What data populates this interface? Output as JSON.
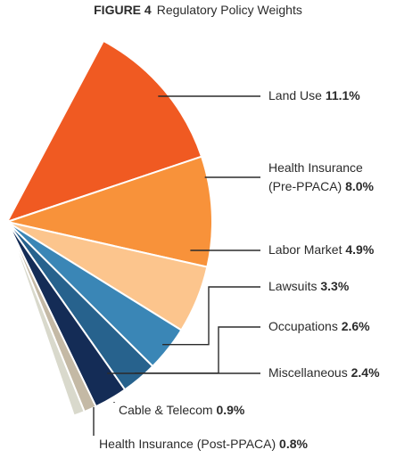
{
  "figure": {
    "number": "FIGURE 4",
    "title": "Regulatory Policy Weights"
  },
  "chart_data": {
    "type": "pie",
    "title": "Regulatory Policy Weights",
    "unit": "%",
    "slices": [
      {
        "label": "Land Use",
        "value": 11.1,
        "value_label": "11.1%",
        "color": "#f05a22"
      },
      {
        "label": "Health Insurance (Pre-PPACA)",
        "label_lines": [
          "Health Insurance",
          "(Pre-PPACA)"
        ],
        "value": 8.0,
        "value_label": "8.0%",
        "color": "#f8923a"
      },
      {
        "label": "Labor Market",
        "value": 4.9,
        "value_label": "4.9%",
        "color": "#fcc58d"
      },
      {
        "label": "Lawsuits",
        "value": 3.3,
        "value_label": "3.3%",
        "color": "#3a86b6"
      },
      {
        "label": "Occupations",
        "value": 2.6,
        "value_label": "2.6%",
        "color": "#27628d"
      },
      {
        "label": "Miscellaneous",
        "value": 2.4,
        "value_label": "2.4%",
        "color": "#142c56"
      },
      {
        "label": "Cable & Telecom",
        "value": 0.9,
        "value_label": "0.9%",
        "color": "#c4b9a5"
      },
      {
        "label": "Health Insurance (Post-PPACA)",
        "value": 0.8,
        "value_label": "0.8%",
        "color": "#d9d9cc"
      }
    ]
  }
}
